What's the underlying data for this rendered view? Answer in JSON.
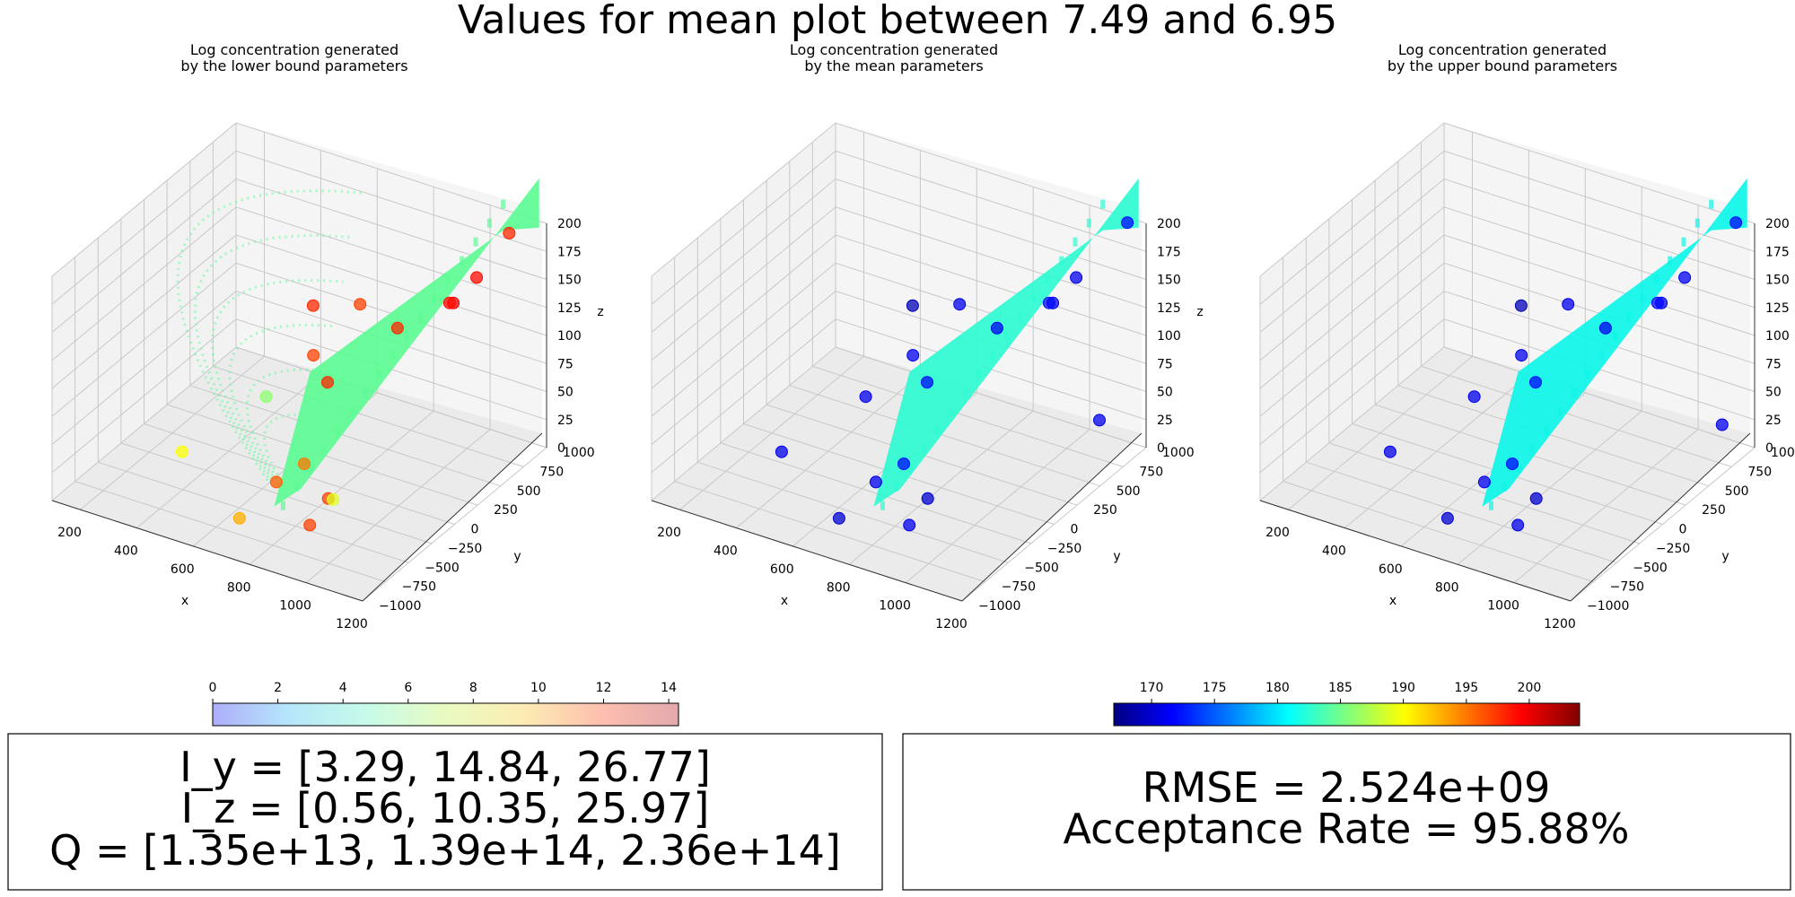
{
  "figure": {
    "title": "Values for mean plot between 7.49 and 6.95"
  },
  "chart_data": [
    {
      "type": "scatter",
      "subtitle_lines": [
        "Log concentration generated",
        "by the lower bound parameters"
      ],
      "xlabel": "x",
      "ylabel": "y",
      "zlabel": "z",
      "xlim": [
        100,
        1200
      ],
      "ylim": [
        -1000,
        1000
      ],
      "zlim": [
        0,
        200
      ],
      "x_ticks": [
        "200",
        "400",
        "600",
        "800",
        "1000",
        "1200"
      ],
      "y_ticks": [
        "−1000",
        "−750",
        "−500",
        "−250",
        "0",
        "250",
        "500",
        "750",
        "1000"
      ],
      "z_ticks": [
        "0",
        "25",
        "50",
        "75",
        "100",
        "125",
        "150",
        "175",
        "200"
      ],
      "plume_color": "#5dfb95",
      "plume_arcs": true,
      "points": [
        {
          "x": 1100,
          "y": 900,
          "z": 190,
          "value": 198
        },
        {
          "x": 1050,
          "y": 700,
          "z": 160,
          "value": 199
        },
        {
          "x": 1000,
          "y": 600,
          "z": 140,
          "value": 200
        },
        {
          "x": 990,
          "y": 590,
          "z": 140,
          "value": 199
        },
        {
          "x": 900,
          "y": 300,
          "z": 130,
          "value": 198
        },
        {
          "x": 800,
          "y": 200,
          "z": 150,
          "value": 197
        },
        {
          "x": 650,
          "y": 150,
          "z": 140,
          "value": 198
        },
        {
          "x": 700,
          "y": 0,
          "z": 110,
          "value": 197
        },
        {
          "x": 750,
          "y": 0,
          "z": 90,
          "value": 198
        },
        {
          "x": 500,
          "y": 100,
          "z": 50,
          "value": 186
        },
        {
          "x": 700,
          "y": -100,
          "z": 20,
          "value": 195
        },
        {
          "x": 850,
          "y": -300,
          "z": 15,
          "value": 197
        },
        {
          "x": 650,
          "y": -250,
          "z": 10,
          "value": 196
        },
        {
          "x": 900,
          "y": -400,
          "z": 25,
          "value": 189
        },
        {
          "x": 850,
          "y": -500,
          "z": 5,
          "value": 197
        },
        {
          "x": 300,
          "y": -200,
          "z": 5,
          "value": 190
        },
        {
          "x": 650,
          "y": -650,
          "z": 5,
          "value": 193
        }
      ]
    },
    {
      "type": "scatter",
      "subtitle_lines": [
        "Log concentration generated",
        "by the mean parameters"
      ],
      "xlabel": "x",
      "ylabel": "y",
      "zlabel": "z",
      "xlim": [
        100,
        1200
      ],
      "ylim": [
        -1000,
        1000
      ],
      "zlim": [
        0,
        200
      ],
      "x_ticks": [
        "200",
        "400",
        "600",
        "800",
        "1000",
        "1200"
      ],
      "y_ticks": [
        "−1000",
        "−750",
        "−500",
        "−250",
        "0",
        "250",
        "500",
        "750",
        "1000"
      ],
      "z_ticks": [
        "0",
        "25",
        "50",
        "75",
        "100",
        "125",
        "150",
        "175",
        "200"
      ],
      "plume_color": "#2ffbd1",
      "plume_arcs": false,
      "points": [
        {
          "x": 1150,
          "y": 950,
          "z": 200,
          "value": 172
        },
        {
          "x": 1050,
          "y": 700,
          "z": 160,
          "value": 171
        },
        {
          "x": 1000,
          "y": 600,
          "z": 140,
          "value": 171
        },
        {
          "x": 990,
          "y": 590,
          "z": 140,
          "value": 172
        },
        {
          "x": 900,
          "y": 300,
          "z": 130,
          "value": 171
        },
        {
          "x": 800,
          "y": 200,
          "z": 150,
          "value": 171
        },
        {
          "x": 650,
          "y": 150,
          "z": 140,
          "value": 169
        },
        {
          "x": 700,
          "y": 0,
          "z": 110,
          "value": 171
        },
        {
          "x": 750,
          "y": 0,
          "z": 90,
          "value": 172
        },
        {
          "x": 500,
          "y": 100,
          "z": 50,
          "value": 171
        },
        {
          "x": 700,
          "y": -100,
          "z": 20,
          "value": 172
        },
        {
          "x": 850,
          "y": -300,
          "z": 15,
          "value": 170
        },
        {
          "x": 650,
          "y": -250,
          "z": 10,
          "value": 171
        },
        {
          "x": 1100,
          "y": 800,
          "z": 30,
          "value": 171
        },
        {
          "x": 850,
          "y": -500,
          "z": 5,
          "value": 171
        },
        {
          "x": 300,
          "y": -200,
          "z": 5,
          "value": 171
        },
        {
          "x": 650,
          "y": -650,
          "z": 5,
          "value": 170
        }
      ]
    },
    {
      "type": "scatter",
      "subtitle_lines": [
        "Log concentration generated",
        "by the upper bound parameters"
      ],
      "xlabel": "x",
      "ylabel": "y",
      "zlabel": "z",
      "xlim": [
        100,
        1200
      ],
      "ylim": [
        -1000,
        1000
      ],
      "zlim": [
        0,
        200
      ],
      "x_ticks": [
        "200",
        "400",
        "600",
        "800",
        "1000",
        "1200"
      ],
      "y_ticks": [
        "−1000",
        "−750",
        "−500",
        "−250",
        "0",
        "250",
        "500",
        "750",
        "1000"
      ],
      "z_ticks": [
        "0",
        "25",
        "50",
        "75",
        "100",
        "125",
        "150",
        "175",
        "200"
      ],
      "plume_color": "#0ef5e8",
      "plume_arcs": false,
      "points": [
        {
          "x": 1150,
          "y": 950,
          "z": 200,
          "value": 172
        },
        {
          "x": 1050,
          "y": 700,
          "z": 160,
          "value": 171
        },
        {
          "x": 1000,
          "y": 600,
          "z": 140,
          "value": 171
        },
        {
          "x": 990,
          "y": 590,
          "z": 140,
          "value": 172
        },
        {
          "x": 900,
          "y": 300,
          "z": 130,
          "value": 171
        },
        {
          "x": 800,
          "y": 200,
          "z": 150,
          "value": 171
        },
        {
          "x": 650,
          "y": 150,
          "z": 140,
          "value": 169
        },
        {
          "x": 700,
          "y": 0,
          "z": 110,
          "value": 171
        },
        {
          "x": 750,
          "y": 0,
          "z": 90,
          "value": 172
        },
        {
          "x": 500,
          "y": 100,
          "z": 50,
          "value": 171
        },
        {
          "x": 700,
          "y": -100,
          "z": 20,
          "value": 172
        },
        {
          "x": 850,
          "y": -300,
          "z": 15,
          "value": 170
        },
        {
          "x": 650,
          "y": -250,
          "z": 10,
          "value": 171
        },
        {
          "x": 1150,
          "y": 800,
          "z": 30,
          "value": 171
        },
        {
          "x": 850,
          "y": -500,
          "z": 5,
          "value": 171
        },
        {
          "x": 300,
          "y": -200,
          "z": 5,
          "value": 171
        },
        {
          "x": 650,
          "y": -650,
          "z": 5,
          "value": 170
        }
      ]
    }
  ],
  "colorbars": [
    {
      "name": "concentration-colorbar",
      "ticks": [
        "0",
        "2",
        "4",
        "6",
        "8",
        "10",
        "12",
        "14"
      ],
      "range": [
        0,
        14.3
      ],
      "colors": [
        "#aeaefa",
        "#b5e7fb",
        "#c7fbe8",
        "#e9fbc1",
        "#fdecb3",
        "#fdbfae",
        "#e3a9ad"
      ]
    },
    {
      "name": "sensor-colorbar",
      "ticks": [
        "170",
        "175",
        "180",
        "185",
        "190",
        "195",
        "200"
      ],
      "range": [
        167,
        204
      ],
      "colors": [
        "#00007f",
        "#0000ff",
        "#007fff",
        "#00ffff",
        "#7fff7f",
        "#ffff00",
        "#ff7f00",
        "#ff0000",
        "#7f0000"
      ]
    }
  ],
  "parameters_box": {
    "lines": [
      "I_y = [3.29, 14.84, 26.77]",
      "I_z = [0.56, 10.35, 25.97]",
      "Q = [1.35e+13, 1.39e+14, 2.36e+14]"
    ]
  },
  "metrics_box": {
    "lines": [
      "RMSE = 2.524e+09",
      "Acceptance Rate = 95.88%"
    ]
  }
}
